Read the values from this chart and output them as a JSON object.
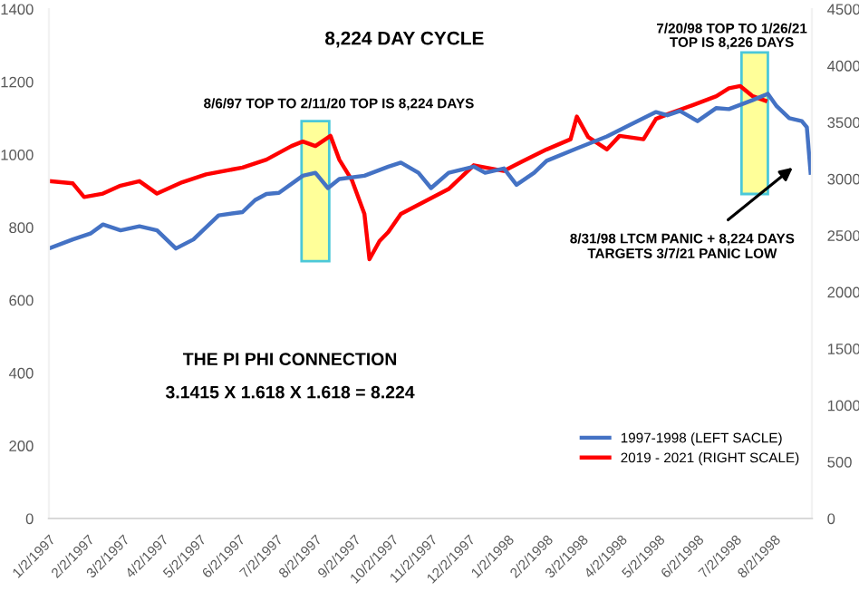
{
  "chart_data": {
    "type": "line",
    "title": "8,224 DAY CYCLE",
    "xlim": [
      "1997-01-02",
      "1998-09-01"
    ],
    "xticks": [
      {
        "value": "1997-01-02",
        "label": "1/2/1997"
      },
      {
        "value": "1997-02-02",
        "label": "2/2/1997"
      },
      {
        "value": "1997-03-02",
        "label": "3/2/1997"
      },
      {
        "value": "1997-04-02",
        "label": "4/2/1997"
      },
      {
        "value": "1997-05-02",
        "label": "5/2/1997"
      },
      {
        "value": "1997-06-02",
        "label": "6/2/1997"
      },
      {
        "value": "1997-07-02",
        "label": "7/2/1997"
      },
      {
        "value": "1997-08-02",
        "label": "8/2/1997"
      },
      {
        "value": "1997-09-02",
        "label": "9/2/1997"
      },
      {
        "value": "1997-10-02",
        "label": "10/2/1997"
      },
      {
        "value": "1997-11-02",
        "label": "11/2/1997"
      },
      {
        "value": "1997-12-02",
        "label": "12/2/1997"
      },
      {
        "value": "1998-01-02",
        "label": "1/2/1998"
      },
      {
        "value": "1998-02-02",
        "label": "2/2/1998"
      },
      {
        "value": "1998-03-02",
        "label": "3/2/1998"
      },
      {
        "value": "1998-04-02",
        "label": "4/2/1998"
      },
      {
        "value": "1998-05-02",
        "label": "5/2/1998"
      },
      {
        "value": "1998-06-02",
        "label": "6/2/1998"
      },
      {
        "value": "1998-07-02",
        "label": "7/2/1998"
      },
      {
        "value": "1998-08-02",
        "label": "8/2/1998"
      }
    ],
    "ylim": [
      0,
      1400
    ],
    "yticks": [
      0,
      200,
      400,
      600,
      800,
      1000,
      1200,
      1400
    ],
    "y2lim": [
      0,
      4500
    ],
    "y2ticks": [
      0,
      500,
      1000,
      1500,
      2000,
      2500,
      3000,
      3500,
      4000,
      4500
    ],
    "grid": false,
    "legend": "bottom right",
    "series": [
      {
        "name": "1997-1998 (LEFT SACLE)",
        "color": "#4472c4",
        "x": [
          "1997-01-02",
          "1997-01-21",
          "1997-02-04",
          "1997-02-14",
          "1997-02-28",
          "1997-03-15",
          "1997-03-29",
          "1997-04-13",
          "1997-04-27",
          "1997-05-07",
          "1997-05-17",
          "1997-06-05",
          "1997-06-15",
          "1997-06-24",
          "1997-07-04",
          "1997-07-23",
          "1997-08-02",
          "1997-08-12",
          "1997-08-21",
          "1997-09-10",
          "1997-09-29",
          "1997-10-09",
          "1997-10-23",
          "1997-11-02",
          "1997-11-16",
          "1997-12-06",
          "1997-12-15",
          "1997-12-30",
          "1998-01-09",
          "1998-01-23",
          "1998-02-02",
          "1998-02-26",
          "1998-03-22",
          "1998-04-10",
          "1998-04-30",
          "1998-05-09",
          "1998-05-19",
          "1998-06-02",
          "1998-06-17",
          "1998-06-27",
          "1998-07-16",
          "1998-07-28",
          "1998-08-04",
          "1998-08-14",
          "1998-08-24",
          "1998-08-28",
          "1998-08-31"
        ],
        "values": [
          742,
          767,
          783,
          808,
          792,
          803,
          792,
          742,
          767,
          800,
          833,
          842,
          875,
          892,
          895,
          942,
          950,
          908,
          933,
          942,
          967,
          978,
          950,
          908,
          950,
          967,
          950,
          962,
          917,
          950,
          983,
          1017,
          1050,
          1083,
          1117,
          1108,
          1120,
          1092,
          1128,
          1125,
          1150,
          1167,
          1133,
          1100,
          1092,
          1075,
          950
        ]
      },
      {
        "name": "2019 - 2021 (RIGHT SCALE)",
        "color": "#ff0000",
        "axis": "y2",
        "x": [
          "1997-01-02",
          "1997-01-21",
          "1997-01-30",
          "1997-02-14",
          "1997-02-28",
          "1997-03-15",
          "1997-03-29",
          "1997-04-18",
          "1997-05-07",
          "1997-06-05",
          "1997-06-24",
          "1997-07-14",
          "1997-07-23",
          "1997-08-02",
          "1997-08-14",
          "1997-08-21",
          "1997-08-31",
          "1997-09-10",
          "1997-09-14",
          "1997-09-22",
          "1997-09-29",
          "1997-10-09",
          "1997-10-28",
          "1997-11-16",
          "1997-12-06",
          "1997-12-30",
          "1998-01-13",
          "1998-02-02",
          "1998-02-21",
          "1998-02-26",
          "1998-03-07",
          "1998-03-22",
          "1998-04-01",
          "1998-04-20",
          "1998-04-30",
          "1998-05-09",
          "1998-05-29",
          "1998-06-17",
          "1998-06-27",
          "1998-07-06",
          "1998-07-16",
          "1998-07-26"
        ],
        "values": [
          2980,
          2960,
          2840,
          2870,
          2940,
          2980,
          2870,
          2970,
          3040,
          3100,
          3170,
          3290,
          3330,
          3290,
          3380,
          3170,
          2990,
          2690,
          2290,
          2450,
          2530,
          2690,
          2800,
          2910,
          3120,
          3070,
          3150,
          3260,
          3350,
          3550,
          3370,
          3260,
          3380,
          3350,
          3530,
          3570,
          3650,
          3730,
          3800,
          3820,
          3730,
          3690
        ]
      }
    ],
    "bands": [
      {
        "axis": "x",
        "from": "1997-07-22",
        "to": "1997-08-13",
        "label": "8/6/97 TOP TO 2/11/20 TOP IS 8,224 DAYS",
        "color": "#ffff99"
      },
      {
        "axis": "x",
        "from": "1998-07-07",
        "to": "1998-07-28",
        "label": "7/20/98 TOP TO 1/26/21\nTOP IS 8,226 DAYS",
        "color": "#ffff99"
      }
    ],
    "annotations": [
      "8/31/98 LTCM PANIC + 8,224 DAYS\nTARGETS 3/7/21 PANIC LOW",
      "THE PI PHI CONNECTION",
      "3.1415 X 1.618 X 1.618 = 8.224"
    ]
  }
}
